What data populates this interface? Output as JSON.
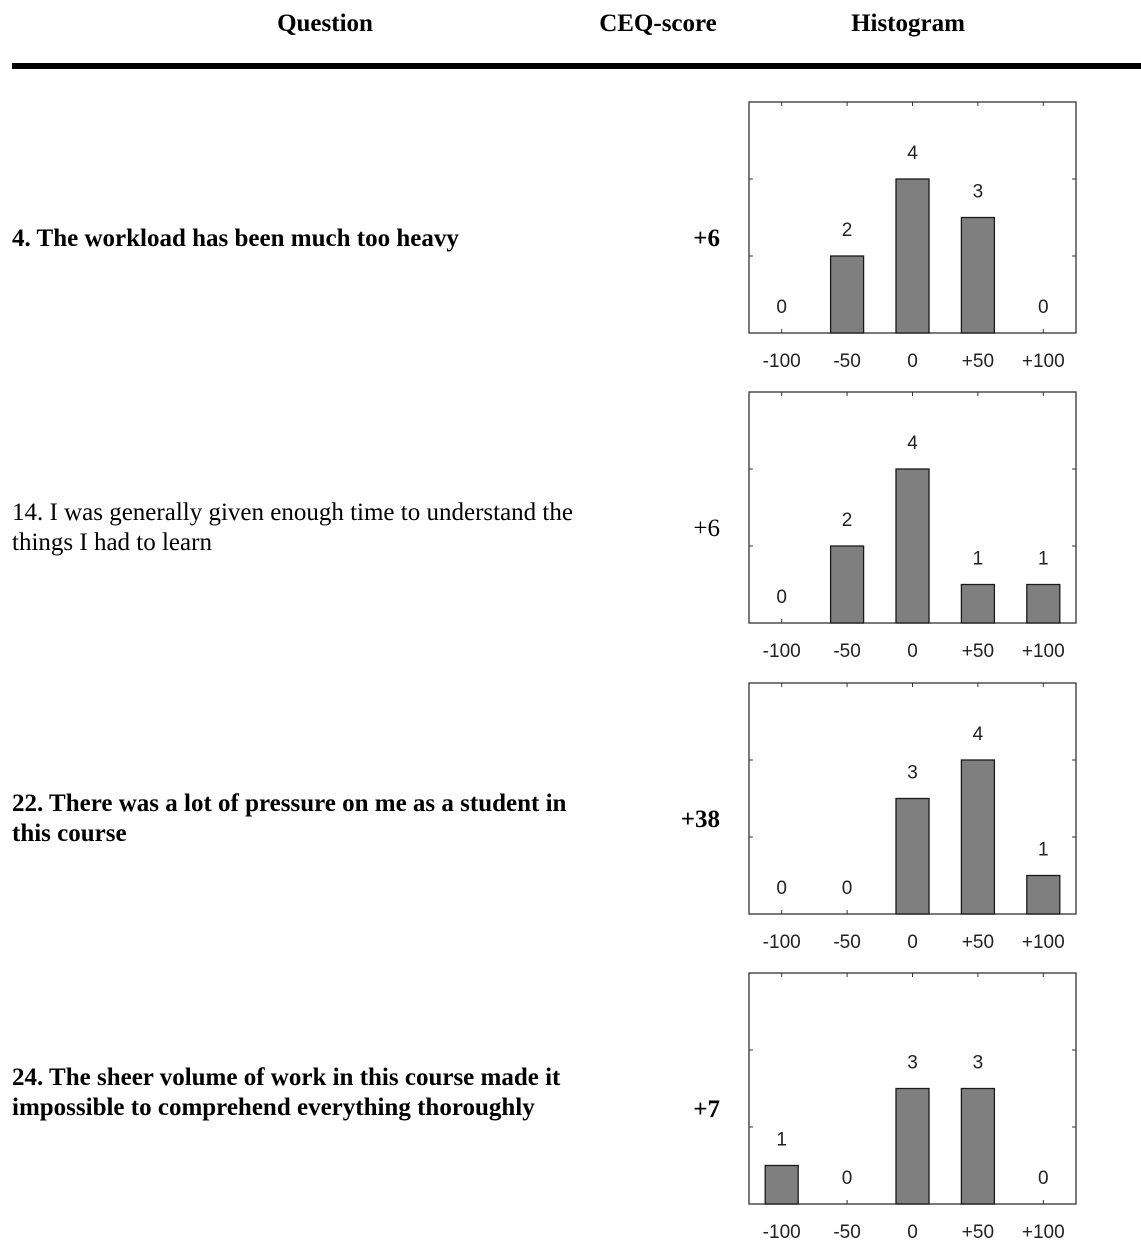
{
  "header": {
    "question": "Question",
    "score": "CEQ-score",
    "histogram": "Histogram"
  },
  "rows": [
    {
      "question": "4. The workload has been much too heavy",
      "bold": true,
      "score": "+6"
    },
    {
      "question": "14. I was generally given enough time to understand the things I had to learn",
      "bold": false,
      "score": "+6"
    },
    {
      "question": "22. There was a lot of pressure on me as a student in this course",
      "bold": true,
      "score": "+38"
    },
    {
      "question": "24. The sheer volume of work in this course made it impossible to comprehend everything thoroughly",
      "bold": true,
      "score": "+7"
    }
  ],
  "chart_data": [
    {
      "type": "bar",
      "categories": [
        "-100",
        "-50",
        "0",
        "+50",
        "+100"
      ],
      "values": [
        0,
        2,
        4,
        3,
        0
      ],
      "data_labels": [
        "0",
        "2",
        "4",
        "3",
        "0"
      ],
      "ylim": [
        0,
        6
      ],
      "bar_color": "#7f7f7f",
      "grid": false
    },
    {
      "type": "bar",
      "categories": [
        "-100",
        "-50",
        "0",
        "+50",
        "+100"
      ],
      "values": [
        0,
        2,
        4,
        1,
        1
      ],
      "data_labels": [
        "0",
        "2",
        "4",
        "1",
        "1"
      ],
      "ylim": [
        0,
        6
      ],
      "bar_color": "#7f7f7f",
      "grid": false
    },
    {
      "type": "bar",
      "categories": [
        "-100",
        "-50",
        "0",
        "+50",
        "+100"
      ],
      "values": [
        0,
        0,
        3,
        4,
        1
      ],
      "data_labels": [
        "0",
        "0",
        "3",
        "4",
        "1"
      ],
      "ylim": [
        0,
        6
      ],
      "bar_color": "#7f7f7f",
      "grid": false
    },
    {
      "type": "bar",
      "categories": [
        "-100",
        "-50",
        "0",
        "+50",
        "+100"
      ],
      "values": [
        1,
        0,
        3,
        3,
        0
      ],
      "data_labels": [
        "1",
        "0",
        "3",
        "3",
        "0"
      ],
      "ylim": [
        0,
        6
      ],
      "bar_color": "#7f7f7f",
      "grid": false
    }
  ]
}
